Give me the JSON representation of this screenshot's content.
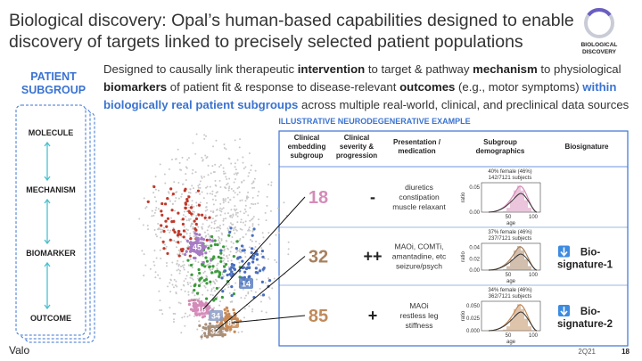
{
  "header": {
    "title_lines": [
      "Biological discovery: Opal’s human-based capabilities designed to enable",
      "discovery of targets linked to precisely selected patient populations"
    ],
    "logo_lines": [
      "BIOLOGICAL",
      "DISCOVERY"
    ]
  },
  "sidebar": {
    "title_lines": [
      "PATIENT",
      "SUBGROUP"
    ],
    "levels": [
      "MOLECULE",
      "MECHANISM",
      "BIOMARKER",
      "OUTCOME"
    ]
  },
  "paragraph": {
    "segments": [
      {
        "text": "Designed to causally link therapeutic ",
        "style": "normal"
      },
      {
        "text": "intervention",
        "style": "bold"
      },
      {
        "text": " to target & pathway ",
        "style": "normal"
      },
      {
        "text": "mechanism",
        "style": "bold"
      },
      {
        "text": " to physiological ",
        "style": "normal"
      },
      {
        "text": "biomarkers",
        "style": "bold"
      },
      {
        "text": " of patient fit & response to disease-relevant ",
        "style": "normal"
      },
      {
        "text": "outcomes",
        "style": "bold"
      },
      {
        "text": " (e.g., motor symptoms) ",
        "style": "normal"
      },
      {
        "text": "within biologically real patient subgroups",
        "style": "blue"
      },
      {
        "text": " across multiple real-world, clinical, and preclinical data sources",
        "style": "normal"
      }
    ]
  },
  "example_title": "ILLUSTRATIVE NEURODEGENERATIVE EXAMPLE",
  "cluster_labels": [
    {
      "text": "45",
      "color": "#a77bc4"
    },
    {
      "text": "14",
      "color": "#5b7fc2"
    },
    {
      "text": "18",
      "color": "#d58bb8"
    },
    {
      "text": "34",
      "color": "#8a9bc6"
    },
    {
      "text": "85",
      "color": "#c98a55"
    },
    {
      "text": "32",
      "color": "#a88f7a"
    }
  ],
  "table": {
    "headers": [
      [
        "Clinical",
        "embedding",
        "subgroup"
      ],
      [
        "Clinical",
        "severity &",
        "progression"
      ],
      [
        "Presentation /",
        "medication"
      ],
      [
        "Subgroup",
        "demographics"
      ],
      [
        "Biosignature"
      ]
    ],
    "rows": [
      {
        "subgroup": "18",
        "color": "#d58bb8",
        "severity": "-",
        "presentation": [
          "diuretics",
          "constipation",
          "muscle relaxant"
        ],
        "demo_lines": [
          "40% female (46%)",
          "142/7121 subjects"
        ],
        "yticks": [
          "0.05",
          "0.00"
        ],
        "xticks": [
          "50",
          "100"
        ],
        "ylabel": "ratio",
        "xlabel": "age"
      },
      {
        "subgroup": "32",
        "color": "#a7805e",
        "severity": "++",
        "presentation": [
          "MAOi, COMTi,",
          "amantadine, etc",
          "seizure/psych"
        ],
        "demo_lines": [
          "37% female (46%)",
          "237/7121 subjects"
        ],
        "yticks": [
          "0.04",
          "0.02",
          "0.00"
        ],
        "xticks": [
          "50",
          "100"
        ],
        "ylabel": "ratio",
        "xlabel": "age",
        "biosignature": [
          "Bio-",
          "signature-1"
        ]
      },
      {
        "subgroup": "85",
        "color": "#c08a5a",
        "severity": "+",
        "presentation": [
          "MAOi",
          "restless leg",
          "stiffness"
        ],
        "demo_lines": [
          "34% female (46%)",
          "362/7121 subjects"
        ],
        "yticks": [
          "0.050",
          "0.025",
          "0.000"
        ],
        "xticks": [
          "50",
          "100"
        ],
        "ylabel": "ratio",
        "xlabel": "age",
        "biosignature": [
          "Bio-",
          "signature-2"
        ]
      }
    ]
  },
  "footer": {
    "brand": "Valo",
    "period": "2Q21",
    "page": "18"
  }
}
